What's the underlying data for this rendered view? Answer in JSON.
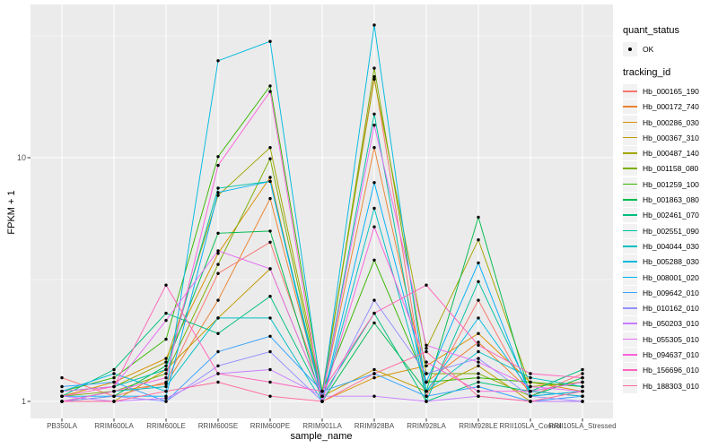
{
  "chart_data": {
    "type": "line",
    "xlabel": "sample_name",
    "ylabel": "FPKM + 1",
    "y_scale": "log10",
    "ylim": [
      1,
      42
    ],
    "y_tick_labels": [
      "1",
      "10"
    ],
    "y_tick_values": [
      1,
      10
    ],
    "y_minor_values": [
      3.162,
      31.62
    ],
    "grid": "on",
    "panel_bg": "#EBEBEB",
    "grid_color": "#FFFFFF",
    "point_color": "#000000",
    "categories": [
      "PB350LA",
      "RRIM600LA",
      "RRIM600LE",
      "RRIM600SE",
      "RRIM600PE",
      "RRIM901LA",
      "RRIM928BA",
      "RRIM928LA",
      "RRIM928LE",
      "RRII105LA_Control",
      "RRII105LA_Stressed"
    ],
    "legend": {
      "position": "right",
      "quant_status_title": "quant_status",
      "quant_status_items": [
        {
          "label": "OK",
          "marker": "point"
        }
      ],
      "tracking_id_title": "tracking_id"
    },
    "series": [
      {
        "name": "Hb_000165_190",
        "color": "#F8766D",
        "values": [
          1.25,
          1.05,
          1.2,
          3.35,
          4.5,
          1.1,
          21.5,
          1.05,
          2.6,
          1.05,
          1.3
        ]
      },
      {
        "name": "Hb_000172_740",
        "color": "#EA8331",
        "values": [
          1.0,
          1.1,
          1.18,
          2.6,
          6.8,
          1.05,
          11.0,
          1.2,
          1.75,
          1.1,
          1.05
        ]
      },
      {
        "name": "Hb_000286_030",
        "color": "#D89000",
        "values": [
          1.05,
          1.2,
          1.5,
          4.05,
          8.3,
          1.0,
          1.25,
          1.4,
          1.9,
          1.2,
          1.1
        ]
      },
      {
        "name": "Hb_000367_310",
        "color": "#C09B00",
        "values": [
          1.0,
          1.0,
          1.35,
          2.2,
          3.5,
          1.05,
          1.35,
          1.1,
          1.4,
          1.0,
          1.0
        ]
      },
      {
        "name": "Hb_000487_140",
        "color": "#A3A500",
        "values": [
          1.1,
          1.15,
          1.45,
          7.0,
          11.0,
          1.1,
          21.0,
          1.65,
          4.6,
          1.15,
          1.2
        ]
      },
      {
        "name": "Hb_001158_080",
        "color": "#7CAE00",
        "values": [
          1.05,
          1.1,
          1.3,
          3.65,
          9.9,
          1.05,
          23.3,
          1.3,
          1.3,
          1.05,
          1.1
        ]
      },
      {
        "name": "Hb_001259_100",
        "color": "#39B600",
        "values": [
          1.1,
          1.25,
          1.8,
          10.1,
          19.7,
          1.1,
          3.8,
          1.2,
          1.25,
          1.2,
          1.15
        ]
      },
      {
        "name": "Hb_001863_080",
        "color": "#00BB4E",
        "values": [
          1.0,
          1.05,
          1.4,
          4.9,
          5.0,
          1.0,
          2.1,
          1.1,
          5.7,
          1.05,
          1.25
        ]
      },
      {
        "name": "Hb_002461_070",
        "color": "#00BF7D",
        "values": [
          1.05,
          1.35,
          2.3,
          1.9,
          2.7,
          1.05,
          2.3,
          1.0,
          1.2,
          1.1,
          1.35
        ]
      },
      {
        "name": "Hb_002551_090",
        "color": "#00C1A3",
        "values": [
          1.1,
          1.15,
          1.35,
          7.5,
          8.0,
          1.05,
          15.1,
          1.0,
          3.1,
          1.1,
          1.2
        ]
      },
      {
        "name": "Hb_004044_030",
        "color": "#00BFC4",
        "values": [
          1.0,
          1.1,
          1.15,
          2.2,
          2.2,
          1.0,
          6.2,
          1.1,
          1.6,
          1.25,
          1.15
        ]
      },
      {
        "name": "Hb_005288_030",
        "color": "#00BAE0",
        "values": [
          1.1,
          1.3,
          1.1,
          25.0,
          30.0,
          1.05,
          35.0,
          1.1,
          2.2,
          1.1,
          1.05
        ]
      },
      {
        "name": "Hb_008001_020",
        "color": "#00B0F6",
        "values": [
          1.05,
          1.05,
          1.05,
          7.2,
          8.0,
          1.0,
          7.9,
          1.2,
          3.7,
          1.05,
          1.1
        ]
      },
      {
        "name": "Hb_009642_010",
        "color": "#35A2FF",
        "values": [
          1.15,
          1.2,
          1.0,
          1.6,
          1.85,
          1.1,
          1.3,
          1.05,
          1.15,
          1.0,
          1.05
        ]
      },
      {
        "name": "Hb_010162_010",
        "color": "#9590FF",
        "values": [
          1.0,
          1.05,
          1.0,
          1.4,
          1.6,
          1.0,
          2.6,
          1.3,
          1.5,
          1.05,
          1.0
        ]
      },
      {
        "name": "Hb_050203_010",
        "color": "#C77CFF",
        "values": [
          1.05,
          1.0,
          1.03,
          1.3,
          1.35,
          1.05,
          1.05,
          1.0,
          1.05,
          1.0,
          1.0
        ]
      },
      {
        "name": "Hb_055305_010",
        "color": "#E76BF3",
        "values": [
          1.1,
          1.15,
          2.15,
          4.15,
          3.5,
          1.05,
          13.6,
          1.7,
          1.45,
          1.15,
          1.1
        ]
      },
      {
        "name": "Hb_094637_010",
        "color": "#FA62DB",
        "values": [
          1.0,
          1.1,
          1.25,
          9.3,
          18.7,
          1.0,
          5.2,
          1.45,
          1.1,
          1.1,
          1.2
        ]
      },
      {
        "name": "Hb_156696_010",
        "color": "#FF62BC",
        "values": [
          1.05,
          1.15,
          3.0,
          1.3,
          1.2,
          1.1,
          2.3,
          3.0,
          1.7,
          1.3,
          1.25
        ]
      },
      {
        "name": "Hb_188303_010",
        "color": "#FF6A98",
        "values": [
          1.0,
          1.0,
          1.1,
          1.2,
          1.05,
          1.0,
          1.3,
          1.6,
          1.05,
          1.0,
          1.1
        ]
      }
    ]
  }
}
